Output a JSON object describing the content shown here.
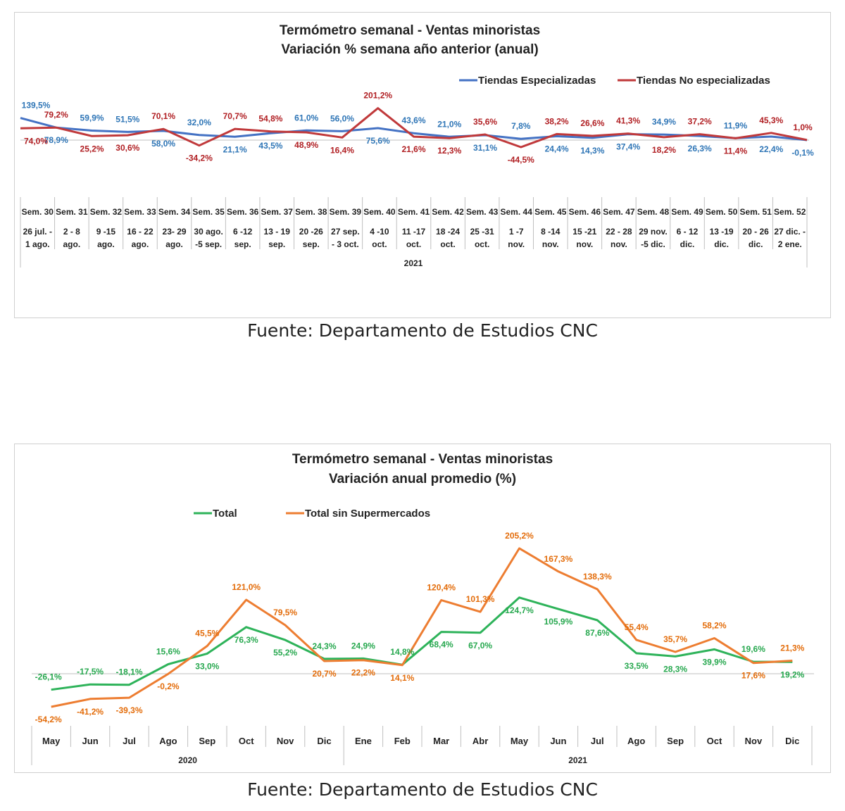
{
  "sources": {
    "source1": "Fuente: Departamento de Estudios CNC",
    "source2": "Fuente: Departamento de Estudios CNC"
  },
  "colors": {
    "especializadas": "#4472c4",
    "especializadas_label": "#2e75b6",
    "no_especializadas": "#c0393b",
    "no_especializadas_label": "#b01e22",
    "total": "#2eb35a",
    "total_label": "#27a84f",
    "sin_super": "#ed7d31",
    "sin_super_label": "#e36c0a"
  },
  "chart_data": [
    {
      "type": "line",
      "title": "Termómetro semanal - Ventas minoristas",
      "subtitle": "Variación % semana año anterior (anual)",
      "categories": [
        {
          "week": "Sem. 30",
          "dates": [
            "26 jul. -",
            "1 ago."
          ]
        },
        {
          "week": "Sem. 31",
          "dates": [
            "2 - 8",
            "ago."
          ]
        },
        {
          "week": "Sem. 32",
          "dates": [
            "9 -15",
            "ago."
          ]
        },
        {
          "week": "Sem. 33",
          "dates": [
            "16 - 22",
            "ago."
          ]
        },
        {
          "week": "Sem. 34",
          "dates": [
            "23- 29",
            "ago."
          ]
        },
        {
          "week": "Sem. 35",
          "dates": [
            "30 ago.",
            "-5 sep."
          ]
        },
        {
          "week": "Sem. 36",
          "dates": [
            "6 -12",
            "sep."
          ]
        },
        {
          "week": "Sem. 37",
          "dates": [
            "13 - 19",
            "sep."
          ]
        },
        {
          "week": "Sem. 38",
          "dates": [
            "20 -26",
            "sep."
          ]
        },
        {
          "week": "Sem. 39",
          "dates": [
            "27 sep.",
            "- 3 oct."
          ]
        },
        {
          "week": "Sem. 40",
          "dates": [
            "4 -10",
            "oct."
          ]
        },
        {
          "week": "Sem. 41",
          "dates": [
            "11 -17",
            "oct."
          ]
        },
        {
          "week": "Sem. 42",
          "dates": [
            "18 -24",
            "oct."
          ]
        },
        {
          "week": "Sem. 43",
          "dates": [
            "25 -31",
            "oct."
          ]
        },
        {
          "week": "Sem. 44",
          "dates": [
            "1 -7",
            "nov."
          ]
        },
        {
          "week": "Sem. 45",
          "dates": [
            "8 -14",
            "nov."
          ]
        },
        {
          "week": "Sem. 46",
          "dates": [
            "15 -21",
            "nov."
          ]
        },
        {
          "week": "Sem. 47",
          "dates": [
            "22 - 28",
            "nov."
          ]
        },
        {
          "week": "Sem. 48",
          "dates": [
            "29 nov.",
            "-5 dic."
          ]
        },
        {
          "week": "Sem. 49",
          "dates": [
            "6 - 12",
            "dic."
          ]
        },
        {
          "week": "Sem. 50",
          "dates": [
            "13 -19",
            "dic."
          ]
        },
        {
          "week": "Sem. 51",
          "dates": [
            "20 - 26",
            "dic."
          ]
        },
        {
          "week": "Sem. 52",
          "dates": [
            "27 dic. -",
            "2 ene."
          ]
        }
      ],
      "year_label": "2021",
      "series": [
        {
          "name": "Tiendas Especializadas",
          "values": [
            139.5,
            78.9,
            59.9,
            51.5,
            58.0,
            32.0,
            21.1,
            43.5,
            61.0,
            56.0,
            75.6,
            43.6,
            21.0,
            31.1,
            7.8,
            24.4,
            14.3,
            37.4,
            34.9,
            26.3,
            11.9,
            22.4,
            -0.1
          ],
          "labels": [
            "139,5%",
            "78,9%",
            "59,9%",
            "51,5%",
            "58,0%",
            "32,0%",
            "21,1%",
            "43,5%",
            "61,0%",
            "56,0%",
            "75,6%",
            "43,6%",
            "21,0%",
            "31,1%",
            "7,8%",
            "24,4%",
            "14,3%",
            "37,4%",
            "34,9%",
            "26,3%",
            "11,9%",
            "22,4%",
            "-0,1%"
          ]
        },
        {
          "name": "Tiendas No especializadas",
          "values": [
            74.0,
            79.2,
            25.2,
            30.6,
            70.1,
            -34.2,
            70.7,
            54.8,
            48.9,
            16.4,
            201.2,
            21.6,
            12.3,
            35.6,
            -44.5,
            38.2,
            26.6,
            41.3,
            18.2,
            37.2,
            11.4,
            45.3,
            1.0
          ],
          "labels": [
            "74,0%",
            "79,2%",
            "25,2%",
            "30,6%",
            "70,1%",
            "-34,2%",
            "70,7%",
            "54,8%",
            "48,9%",
            "16,4%",
            "201,2%",
            "21,6%",
            "12,3%",
            "35,6%",
            "-44,5%",
            "38,2%",
            "26,6%",
            "41,3%",
            "18,2%",
            "37,2%",
            "11,4%",
            "45,3%",
            "1,0%"
          ]
        }
      ],
      "legend_position": "top-right",
      "grid": false
    },
    {
      "type": "line",
      "title": "Termómetro semanal - Ventas minoristas",
      "subtitle": "Variación anual promedio (%)",
      "categories": [
        "May",
        "Jun",
        "Jul",
        "Ago",
        "Sep",
        "Oct",
        "Nov",
        "Dic",
        "Ene",
        "Feb",
        "Mar",
        "Abr",
        "May",
        "Jun",
        "Jul",
        "Ago",
        "Sep",
        "Oct",
        "Nov",
        "Dic"
      ],
      "year_labels": [
        "2020",
        "2021"
      ],
      "series": [
        {
          "name": "Total",
          "values": [
            -26.1,
            -17.5,
            -18.1,
            15.6,
            33.0,
            76.3,
            55.2,
            24.3,
            24.9,
            14.8,
            68.4,
            67.0,
            124.7,
            105.9,
            87.6,
            33.5,
            28.3,
            39.9,
            19.6,
            19.2
          ],
          "labels": [
            "-26,1%",
            "-17,5%",
            "-18,1%",
            "15,6%",
            "33,0%",
            "76,3%",
            "55,2%",
            "24,3%",
            "24,9%",
            "14,8%",
            "68,4%",
            "67,0%",
            "124,7%",
            "105,9%",
            "87,6%",
            "33,5%",
            "28,3%",
            "39,9%",
            "19,6%",
            "19,2%"
          ]
        },
        {
          "name": "Total sin Supermercados",
          "values": [
            -54.2,
            -41.2,
            -39.3,
            -0.2,
            45.5,
            121.0,
            79.5,
            20.7,
            22.2,
            14.1,
            120.4,
            101.3,
            205.2,
            167.3,
            138.3,
            55.4,
            35.7,
            58.2,
            17.6,
            21.3
          ],
          "labels": [
            "-54,2%",
            "-41,2%",
            "-39,3%",
            "-0,2%",
            "45,5%",
            "121,0%",
            "79,5%",
            "20,7%",
            "22,2%",
            "14,1%",
            "120,4%",
            "101,3%",
            "205,2%",
            "167,3%",
            "138,3%",
            "55,4%",
            "35,7%",
            "58,2%",
            "17,6%",
            "21,3%"
          ]
        }
      ],
      "legend_position": "top-left",
      "grid": false
    }
  ]
}
